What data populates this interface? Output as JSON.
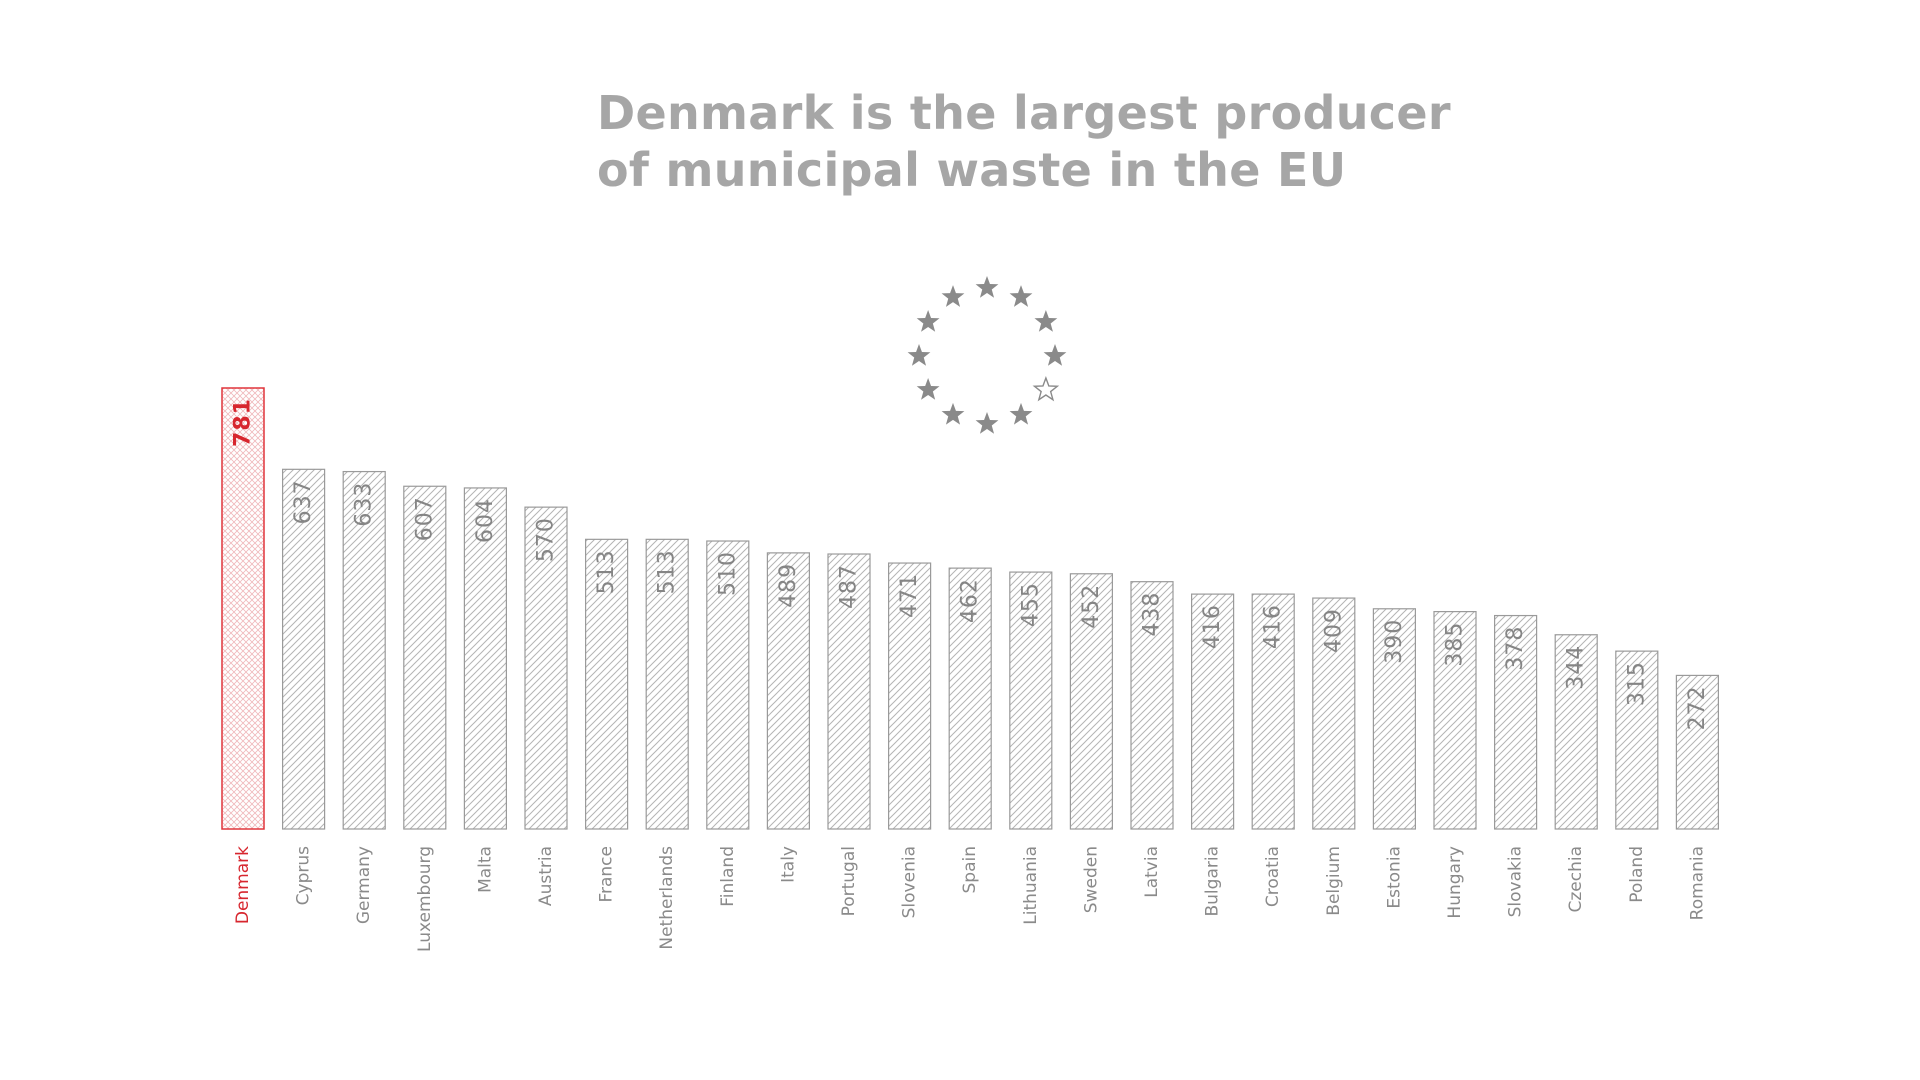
{
  "chart_data": {
    "type": "bar",
    "title_lines": [
      "Denmark is the largest producer",
      "of municipal waste in the EU"
    ],
    "categories": [
      "Denmark",
      "Cyprus",
      "Germany",
      "Luxembourg",
      "Malta",
      "Austria",
      "France",
      "Netherlands",
      "Finland",
      "Italy",
      "Portugal",
      "Slovenia",
      "Spain",
      "Lithuania",
      "Sweden",
      "Latvia",
      "Bulgaria",
      "Croatia",
      "Belgium",
      "Estonia",
      "Hungary",
      "Slovakia",
      "Czechia",
      "Poland",
      "Romania"
    ],
    "values": [
      781,
      637,
      633,
      607,
      604,
      570,
      513,
      513,
      510,
      489,
      487,
      471,
      462,
      455,
      452,
      438,
      416,
      416,
      409,
      390,
      385,
      378,
      344,
      315,
      272
    ],
    "highlight": "Denmark",
    "colors": {
      "default": "#8c8c8c",
      "highlight": "#d7262e",
      "title": "#a6a6a6"
    },
    "decoration": {
      "icon": "eu-stars-icon",
      "star_count": 12,
      "outlined_star_index": 4
    }
  }
}
